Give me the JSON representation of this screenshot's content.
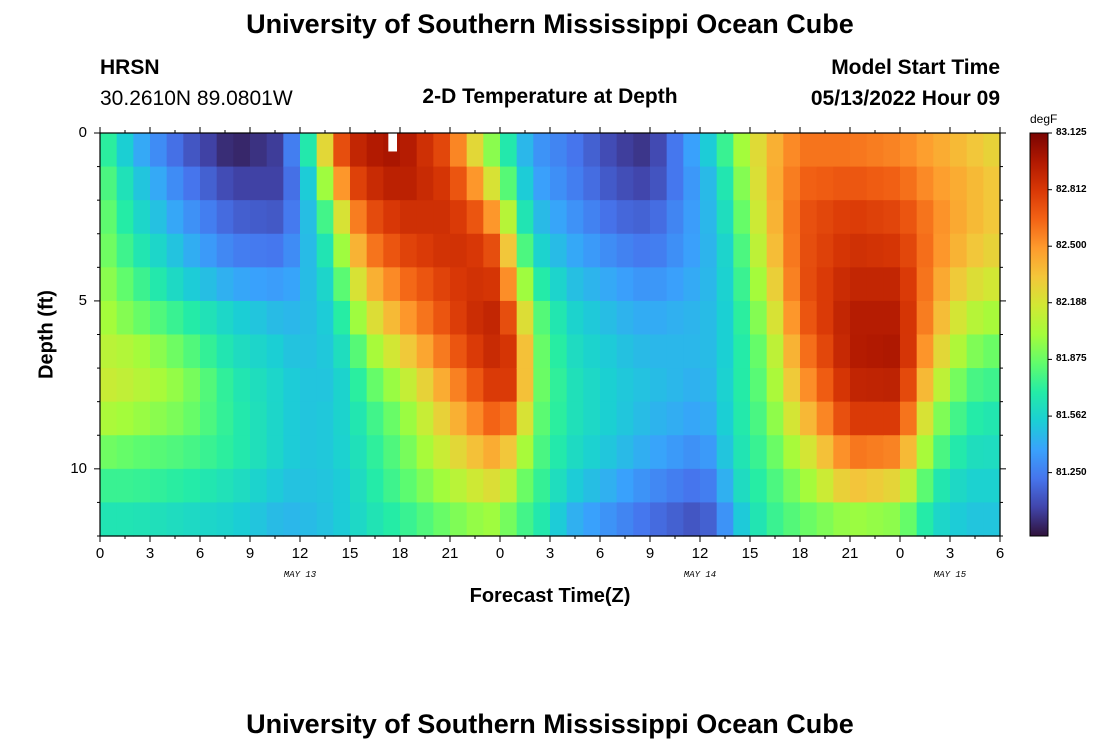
{
  "page": {
    "title": "University of Southern Mississippi Ocean Cube",
    "footer_title": "University of Southern Mississippi Ocean Cube",
    "station": "HRSN",
    "coords": "30.2610N  89.0801W",
    "plot_title": "2-D Temperature at Depth",
    "model_start_label": "Model Start Time",
    "model_start_value": "05/13/2022 Hour 09"
  },
  "chart_data": {
    "type": "heatmap",
    "title": "2-D Temperature at Depth",
    "xlabel": "Forecast Time(Z)",
    "ylabel": "Depth (ft)",
    "x_start_hour": 0,
    "x_end_hour": 54,
    "x_step_hours": 1,
    "x_tick_labels": [
      "0",
      "3",
      "6",
      "9",
      "12",
      "15",
      "18",
      "21",
      "0",
      "3",
      "6",
      "9",
      "12",
      "15",
      "18",
      "21",
      "0",
      "3",
      "6"
    ],
    "date_labels": [
      {
        "text": "MAY 13",
        "hour": 12
      },
      {
        "text": "MAY 14",
        "hour": 36
      },
      {
        "text": "MAY 15",
        "hour": 51
      }
    ],
    "y_tick_labels": [
      "0",
      "5",
      "10"
    ],
    "ylim": [
      0,
      12
    ],
    "depth_levels_ft": [
      0.5,
      1.5,
      2.5,
      3.5,
      4.5,
      5.5,
      6.5,
      7.5,
      8.5,
      9.5,
      10.5,
      11.5
    ],
    "colorbar": {
      "unit": "degF",
      "min": 80.9,
      "max": 83.125,
      "tick_labels": [
        "83.125",
        "82.812",
        "82.500",
        "82.188",
        "81.875",
        "81.562",
        "81.250"
      ],
      "colormap": [
        "#30123b",
        "#4145ab",
        "#4675ed",
        "#39a2fc",
        "#1bcfd4",
        "#24eca6",
        "#61fc6c",
        "#a4fc3b",
        "#d1e834",
        "#f3c63a",
        "#fe9b2d",
        "#f36315",
        "#d93806",
        "#b11901",
        "#7a0402"
      ]
    },
    "profiles_degF": [
      {
        "hour": 0,
        "values": [
          81.8,
          81.88,
          81.92,
          81.95,
          82.0,
          82.05,
          82.1,
          82.15,
          82.05,
          81.9,
          81.75,
          81.65
        ]
      },
      {
        "hour": 2,
        "values": [
          81.45,
          81.55,
          81.62,
          81.7,
          81.8,
          81.9,
          82.05,
          82.1,
          82.0,
          81.85,
          81.75,
          81.65
        ]
      },
      {
        "hour": 5,
        "values": [
          81.15,
          81.25,
          81.35,
          81.45,
          81.55,
          81.72,
          81.85,
          81.95,
          81.9,
          81.8,
          81.7,
          81.6
        ]
      },
      {
        "hour": 8,
        "values": [
          80.95,
          81.05,
          81.15,
          81.25,
          81.4,
          81.55,
          81.62,
          81.68,
          81.7,
          81.7,
          81.62,
          81.55
        ]
      },
      {
        "hour": 11,
        "values": [
          81.05,
          81.05,
          81.12,
          81.22,
          81.35,
          81.45,
          81.52,
          81.55,
          81.55,
          81.55,
          81.5,
          81.45
        ]
      },
      {
        "hour": 12,
        "values": [
          81.45,
          81.35,
          81.35,
          81.38,
          81.42,
          81.45,
          81.47,
          81.5,
          81.5,
          81.5,
          81.48,
          81.45
        ]
      },
      {
        "hour": 13,
        "values": [
          81.9,
          81.7,
          81.6,
          81.55,
          81.52,
          81.5,
          81.5,
          81.5,
          81.5,
          81.5,
          81.5,
          81.48
        ]
      },
      {
        "hour": 14,
        "values": [
          82.6,
          82.3,
          81.95,
          81.75,
          81.62,
          81.55,
          81.52,
          81.5,
          81.52,
          81.52,
          81.5,
          81.5
        ]
      },
      {
        "hour": 15,
        "values": [
          82.85,
          82.7,
          82.45,
          82.25,
          82.05,
          81.85,
          81.7,
          81.62,
          81.6,
          81.58,
          81.55,
          81.55
        ]
      },
      {
        "hour": 16,
        "values": [
          82.95,
          82.85,
          82.7,
          82.55,
          82.35,
          82.15,
          81.95,
          81.8,
          81.72,
          81.68,
          81.65,
          81.62
        ]
      },
      {
        "hour": 18,
        "values": [
          83.0,
          82.95,
          82.85,
          82.75,
          82.6,
          82.45,
          82.25,
          82.05,
          81.92,
          81.85,
          81.8,
          81.72
        ]
      },
      {
        "hour": 21,
        "values": [
          82.7,
          82.8,
          82.85,
          82.85,
          82.8,
          82.75,
          82.65,
          82.5,
          82.35,
          82.2,
          82.05,
          81.9
        ]
      },
      {
        "hour": 23,
        "values": [
          82.1,
          82.4,
          82.65,
          82.8,
          82.85,
          82.9,
          82.85,
          82.75,
          82.6,
          82.4,
          82.2,
          82.0
        ]
      },
      {
        "hour": 24,
        "values": [
          81.8,
          82.0,
          82.35,
          82.65,
          82.8,
          82.9,
          82.9,
          82.85,
          82.7,
          82.45,
          82.25,
          82.0
        ]
      },
      {
        "hour": 25,
        "values": [
          81.55,
          81.65,
          81.8,
          82.0,
          82.25,
          82.55,
          82.75,
          82.75,
          82.5,
          82.2,
          81.95,
          81.8
        ]
      },
      {
        "hour": 26,
        "values": [
          81.35,
          81.4,
          81.5,
          81.6,
          81.75,
          81.9,
          81.95,
          81.95,
          81.9,
          81.85,
          81.8,
          81.75
        ]
      },
      {
        "hour": 28,
        "values": [
          81.25,
          81.28,
          81.35,
          81.42,
          81.5,
          81.58,
          81.62,
          81.65,
          81.65,
          81.62,
          81.55,
          81.45
        ]
      },
      {
        "hour": 31,
        "values": [
          81.05,
          81.1,
          81.18,
          81.28,
          81.38,
          81.45,
          81.5,
          81.52,
          81.52,
          81.48,
          81.4,
          81.3
        ]
      },
      {
        "hour": 33,
        "values": [
          81.0,
          81.05,
          81.15,
          81.22,
          81.32,
          81.4,
          81.45,
          81.48,
          81.45,
          81.4,
          81.3,
          81.2
        ]
      },
      {
        "hour": 36,
        "values": [
          81.45,
          81.4,
          81.4,
          81.4,
          81.42,
          81.45,
          81.45,
          81.42,
          81.38,
          81.3,
          81.2,
          81.1
        ]
      },
      {
        "hour": 37,
        "values": [
          81.6,
          81.52,
          81.5,
          81.48,
          81.48,
          81.48,
          81.48,
          81.48,
          81.45,
          81.4,
          81.3,
          81.2
        ]
      },
      {
        "hour": 38,
        "values": [
          81.9,
          81.8,
          81.72,
          81.65,
          81.62,
          81.6,
          81.6,
          81.62,
          81.62,
          81.6,
          81.55,
          81.45
        ]
      },
      {
        "hour": 40,
        "values": [
          82.35,
          82.35,
          82.3,
          82.25,
          82.15,
          82.05,
          81.95,
          81.9,
          81.85,
          81.8,
          81.75,
          81.72
        ]
      },
      {
        "hour": 42,
        "values": [
          82.6,
          82.65,
          82.7,
          82.7,
          82.7,
          82.65,
          82.55,
          82.45,
          82.3,
          82.1,
          81.95,
          81.85
        ]
      },
      {
        "hour": 45,
        "values": [
          82.6,
          82.7,
          82.8,
          82.85,
          82.9,
          82.95,
          82.95,
          82.9,
          82.8,
          82.6,
          82.35,
          82.0
        ]
      },
      {
        "hour": 48,
        "values": [
          82.55,
          82.65,
          82.75,
          82.82,
          82.9,
          82.95,
          82.98,
          82.92,
          82.8,
          82.55,
          82.25,
          81.95
        ]
      },
      {
        "hour": 50,
        "values": [
          82.45,
          82.5,
          82.55,
          82.55,
          82.5,
          82.45,
          82.35,
          82.2,
          82.0,
          81.85,
          81.7,
          81.6
        ]
      },
      {
        "hour": 52,
        "values": [
          82.35,
          82.4,
          82.4,
          82.35,
          82.25,
          82.1,
          81.95,
          81.8,
          81.7,
          81.62,
          81.55,
          81.5
        ]
      },
      {
        "hour": 54,
        "values": [
          82.25,
          82.3,
          82.3,
          82.25,
          82.15,
          82.0,
          81.85,
          81.75,
          81.65,
          81.6,
          81.55,
          81.5
        ]
      }
    ],
    "missing_cells": [
      {
        "hour": 17,
        "depth_ft": 0.5
      }
    ]
  }
}
